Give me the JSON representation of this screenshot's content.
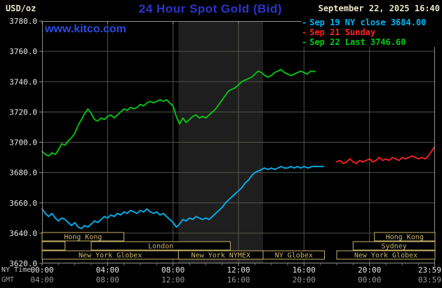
{
  "header": {
    "units": "USD/oz",
    "title": "24 Hour Spot Gold (Bid)",
    "datetime": "September 22, 2025 16:40",
    "watermark": "www.kitco.com"
  },
  "colors": {
    "background": "#000000",
    "title_blue": "#2a35cc",
    "link_blue": "#2c4adf",
    "header_cream": "#e9e3c8",
    "grid": "#51554b",
    "frame": "#909090",
    "band": "#1e1e1e",
    "session": "#c9b56a",
    "axis_primary": "#e8e8e8",
    "axis_secondary": "#9a9a9a",
    "cyan": "#00b6f5",
    "red": "#ff2222",
    "green": "#00cc11"
  },
  "legend": {
    "items": [
      {
        "id": "sep19",
        "label": "Sep 19 NY close 3684.00",
        "color_key": "cyan"
      },
      {
        "id": "sep21",
        "label": "Sep 21 Sunday",
        "color_key": "red"
      },
      {
        "id": "sep22",
        "label": "Sep 22 Last 3746.60",
        "color_key": "green"
      }
    ]
  },
  "axes": {
    "x_ny_label": "NY Time",
    "x_gmt_label": "GMT",
    "x_ticks": [
      {
        "hour": 0,
        "ny": "00:00",
        "gmt": "04:00"
      },
      {
        "hour": 4,
        "ny": "04:00",
        "gmt": "08:00"
      },
      {
        "hour": 8,
        "ny": "08:00",
        "gmt": "12:00"
      },
      {
        "hour": 12,
        "ny": "12:00",
        "gmt": "16:00"
      },
      {
        "hour": 16,
        "ny": "16:00",
        "gmt": "20:00"
      },
      {
        "hour": 20,
        "ny": "20:00",
        "gmt": "00:00"
      },
      {
        "hour": 23.983,
        "ny": "23:59",
        "gmt": "03:59"
      }
    ],
    "y_ticks": [
      {
        "value": 3780,
        "label": "3780.0"
      },
      {
        "value": 3760,
        "label": "3760.0"
      },
      {
        "value": 3740,
        "label": "3740.0"
      },
      {
        "value": 3720,
        "label": "3720.0"
      },
      {
        "value": 3700,
        "label": "3700.0"
      },
      {
        "value": 3680,
        "label": "3680.0"
      },
      {
        "value": 3660,
        "label": "3660.0"
      },
      {
        "value": 3640,
        "label": "3640.0"
      },
      {
        "value": 3620,
        "label": "3620.0"
      }
    ]
  },
  "sessions": [
    {
      "label": "Hong Kong",
      "row": 0,
      "start": 0,
      "end": 5
    },
    {
      "label": "",
      "row": 1,
      "start": 0,
      "end": 1.4
    },
    {
      "label": "London",
      "row": 1,
      "start": 3,
      "end": 11.5
    },
    {
      "label": "New York Globex",
      "row": 2,
      "start": 0,
      "end": 8.33
    },
    {
      "label": "New York NYMEX",
      "row": 2,
      "start": 8.33,
      "end": 13.5
    },
    {
      "label": "NY Globex",
      "row": 2,
      "start": 13.5,
      "end": 17.25
    },
    {
      "label": "Hong Kong",
      "row": 0,
      "start": 20.3,
      "end": 24
    },
    {
      "label": "Sydney",
      "row": 1,
      "start": 19,
      "end": 24
    },
    {
      "label": "New York Globex",
      "row": 2,
      "start": 18,
      "end": 24
    }
  ],
  "chart_data": {
    "type": "line",
    "title": "24 Hour Spot Gold (Bid)",
    "ylabel": "USD/oz",
    "x_unit": "hours, NY time",
    "x_range_hours": [
      0,
      24
    ],
    "ylim": [
      3620,
      3780
    ],
    "y_gridlines": [
      3640,
      3660,
      3680,
      3700,
      3720,
      3740,
      3760
    ],
    "x_gridlines_hours": [
      4,
      8,
      12,
      16,
      20
    ],
    "shaded_band_hours": [
      8.33,
      13.5
    ],
    "series": [
      {
        "id": "sep19-ny-close",
        "name": "Sep 19 NY close 3684.00",
        "color_key": "cyan",
        "points": [
          [
            0,
            3656
          ],
          [
            0.2,
            3653
          ],
          [
            0.4,
            3651
          ],
          [
            0.6,
            3653
          ],
          [
            0.8,
            3650
          ],
          [
            1,
            3648
          ],
          [
            1.2,
            3650
          ],
          [
            1.4,
            3649
          ],
          [
            1.6,
            3647
          ],
          [
            1.8,
            3645
          ],
          [
            2,
            3647
          ],
          [
            2.2,
            3644
          ],
          [
            2.4,
            3643
          ],
          [
            2.6,
            3645
          ],
          [
            2.8,
            3644
          ],
          [
            3,
            3646
          ],
          [
            3.2,
            3648
          ],
          [
            3.4,
            3647
          ],
          [
            3.6,
            3649
          ],
          [
            3.8,
            3651
          ],
          [
            4,
            3650
          ],
          [
            4.2,
            3652
          ],
          [
            4.4,
            3651
          ],
          [
            4.6,
            3653
          ],
          [
            4.8,
            3652
          ],
          [
            5,
            3654
          ],
          [
            5.2,
            3653
          ],
          [
            5.4,
            3655
          ],
          [
            5.6,
            3654
          ],
          [
            5.8,
            3653
          ],
          [
            6,
            3655
          ],
          [
            6.2,
            3654
          ],
          [
            6.4,
            3656
          ],
          [
            6.6,
            3654
          ],
          [
            6.8,
            3653
          ],
          [
            7,
            3654
          ],
          [
            7.2,
            3652
          ],
          [
            7.4,
            3653
          ],
          [
            7.6,
            3651
          ],
          [
            7.8,
            3649
          ],
          [
            8,
            3647
          ],
          [
            8.2,
            3644
          ],
          [
            8.4,
            3646
          ],
          [
            8.6,
            3649
          ],
          [
            8.8,
            3648
          ],
          [
            9,
            3650
          ],
          [
            9.2,
            3649
          ],
          [
            9.4,
            3651
          ],
          [
            9.6,
            3650
          ],
          [
            9.8,
            3649
          ],
          [
            10,
            3650
          ],
          [
            10.2,
            3649
          ],
          [
            10.4,
            3651
          ],
          [
            10.6,
            3653
          ],
          [
            10.8,
            3655
          ],
          [
            11,
            3657
          ],
          [
            11.2,
            3660
          ],
          [
            11.4,
            3662
          ],
          [
            11.6,
            3664
          ],
          [
            11.8,
            3666
          ],
          [
            12,
            3668
          ],
          [
            12.2,
            3670
          ],
          [
            12.4,
            3673
          ],
          [
            12.6,
            3675
          ],
          [
            12.8,
            3678
          ],
          [
            13,
            3680
          ],
          [
            13.2,
            3681
          ],
          [
            13.4,
            3682
          ],
          [
            13.6,
            3683
          ],
          [
            13.8,
            3682
          ],
          [
            14,
            3683
          ],
          [
            14.2,
            3682
          ],
          [
            14.4,
            3683
          ],
          [
            14.6,
            3684
          ],
          [
            14.8,
            3683
          ],
          [
            15,
            3683
          ],
          [
            15.2,
            3684
          ],
          [
            15.4,
            3683
          ],
          [
            15.6,
            3684
          ],
          [
            15.8,
            3683
          ],
          [
            16,
            3684
          ],
          [
            16.25,
            3683
          ],
          [
            16.5,
            3684
          ],
          [
            16.75,
            3684
          ],
          [
            17,
            3684
          ],
          [
            17.2,
            3684
          ]
        ]
      },
      {
        "id": "sep21-sunday",
        "name": "Sep 21 Sunday",
        "color_key": "red",
        "points": [
          [
            18,
            3687
          ],
          [
            18.2,
            3688
          ],
          [
            18.4,
            3686
          ],
          [
            18.6,
            3687
          ],
          [
            18.8,
            3689
          ],
          [
            19,
            3687
          ],
          [
            19.2,
            3686
          ],
          [
            19.4,
            3688
          ],
          [
            19.6,
            3687
          ],
          [
            19.8,
            3688
          ],
          [
            20,
            3689
          ],
          [
            20.2,
            3687
          ],
          [
            20.4,
            3688
          ],
          [
            20.6,
            3690
          ],
          [
            20.8,
            3688
          ],
          [
            21,
            3689
          ],
          [
            21.2,
            3688
          ],
          [
            21.4,
            3690
          ],
          [
            21.6,
            3689
          ],
          [
            21.8,
            3688
          ],
          [
            22,
            3690
          ],
          [
            22.2,
            3689
          ],
          [
            22.4,
            3690
          ],
          [
            22.6,
            3691
          ],
          [
            22.8,
            3690
          ],
          [
            23,
            3689
          ],
          [
            23.2,
            3690
          ],
          [
            23.4,
            3689
          ],
          [
            23.6,
            3691
          ],
          [
            23.8,
            3694
          ],
          [
            23.97,
            3697
          ]
        ]
      },
      {
        "id": "sep22-last",
        "name": "Sep 22 Last 3746.60",
        "color_key": "green",
        "points": [
          [
            0,
            3694
          ],
          [
            0.2,
            3692
          ],
          [
            0.4,
            3691
          ],
          [
            0.6,
            3693
          ],
          [
            0.8,
            3692
          ],
          [
            1,
            3695
          ],
          [
            1.2,
            3699
          ],
          [
            1.4,
            3698
          ],
          [
            1.6,
            3701
          ],
          [
            1.8,
            3703
          ],
          [
            2,
            3706
          ],
          [
            2.2,
            3711
          ],
          [
            2.4,
            3715
          ],
          [
            2.6,
            3719
          ],
          [
            2.8,
            3722
          ],
          [
            3,
            3719
          ],
          [
            3.2,
            3715
          ],
          [
            3.4,
            3714
          ],
          [
            3.6,
            3716
          ],
          [
            3.8,
            3715
          ],
          [
            4,
            3717
          ],
          [
            4.2,
            3718
          ],
          [
            4.4,
            3716
          ],
          [
            4.6,
            3718
          ],
          [
            4.8,
            3720
          ],
          [
            5,
            3722
          ],
          [
            5.2,
            3721
          ],
          [
            5.4,
            3723
          ],
          [
            5.6,
            3722
          ],
          [
            5.8,
            3723
          ],
          [
            6,
            3725
          ],
          [
            6.2,
            3724
          ],
          [
            6.4,
            3726
          ],
          [
            6.6,
            3727
          ],
          [
            6.8,
            3726
          ],
          [
            7,
            3727
          ],
          [
            7.2,
            3728
          ],
          [
            7.4,
            3727
          ],
          [
            7.6,
            3728
          ],
          [
            7.8,
            3726
          ],
          [
            8,
            3724
          ],
          [
            8.2,
            3717
          ],
          [
            8.4,
            3712
          ],
          [
            8.6,
            3716
          ],
          [
            8.8,
            3713
          ],
          [
            9,
            3715
          ],
          [
            9.2,
            3717
          ],
          [
            9.4,
            3718
          ],
          [
            9.6,
            3716
          ],
          [
            9.8,
            3717
          ],
          [
            10,
            3716
          ],
          [
            10.2,
            3718
          ],
          [
            10.4,
            3720
          ],
          [
            10.6,
            3722
          ],
          [
            10.8,
            3725
          ],
          [
            11,
            3728
          ],
          [
            11.2,
            3731
          ],
          [
            11.4,
            3734
          ],
          [
            11.6,
            3735
          ],
          [
            11.8,
            3736
          ],
          [
            12,
            3738
          ],
          [
            12.2,
            3740
          ],
          [
            12.4,
            3741
          ],
          [
            12.6,
            3742
          ],
          [
            12.8,
            3743
          ],
          [
            13,
            3745
          ],
          [
            13.2,
            3747
          ],
          [
            13.4,
            3746
          ],
          [
            13.6,
            3744
          ],
          [
            13.8,
            3743
          ],
          [
            14,
            3744
          ],
          [
            14.2,
            3746
          ],
          [
            14.4,
            3747
          ],
          [
            14.6,
            3748
          ],
          [
            14.8,
            3746
          ],
          [
            15,
            3745
          ],
          [
            15.2,
            3744
          ],
          [
            15.4,
            3745
          ],
          [
            15.6,
            3746
          ],
          [
            15.8,
            3747
          ],
          [
            16,
            3746
          ],
          [
            16.2,
            3745
          ],
          [
            16.4,
            3747
          ],
          [
            16.67,
            3746.6
          ]
        ]
      }
    ]
  }
}
